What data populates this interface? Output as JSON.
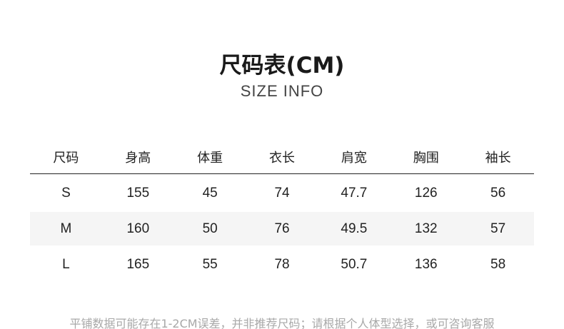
{
  "title": "尺码表(CM)",
  "subtitle": "SIZE INFO",
  "table": {
    "headers": [
      "尺码",
      "身高",
      "体重",
      "衣长",
      "肩宽",
      "胸围",
      "袖长"
    ],
    "rows": [
      [
        "S",
        "155",
        "45",
        "74",
        "47.7",
        "126",
        "56"
      ],
      [
        "M",
        "160",
        "50",
        "76",
        "49.5",
        "132",
        "57"
      ],
      [
        "L",
        "165",
        "55",
        "78",
        "50.7",
        "136",
        "58"
      ]
    ]
  },
  "footer": "平铺数据可能存在1-2CM误差，并非推荐尺码；请根据个人体型选择，或可咨询客服"
}
